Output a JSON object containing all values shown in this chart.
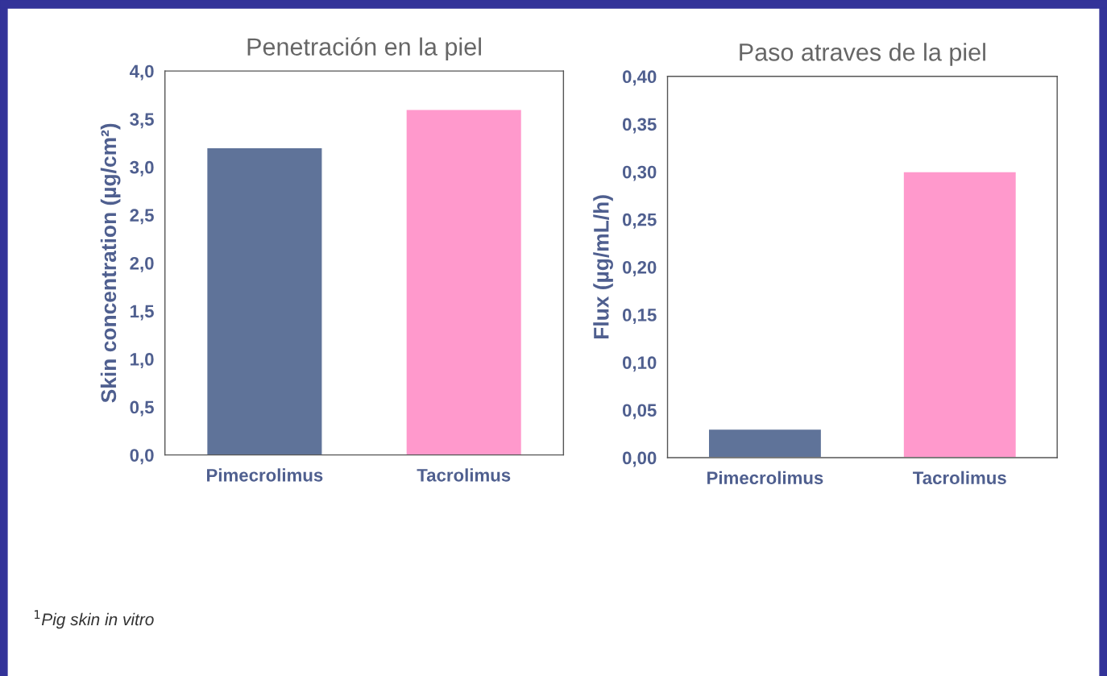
{
  "chart_data": [
    {
      "type": "bar",
      "title": "Penetración en la piel",
      "ylabel": "Skin concentration (µg/cm²)",
      "categories": [
        "Pimecrolimus",
        "Tacrolimus"
      ],
      "values": [
        3.2,
        3.6
      ],
      "colors": [
        "#5f7399",
        "#ff99cc"
      ],
      "ylim": [
        0,
        4
      ],
      "yticks": [
        {
          "value": 0,
          "label": "0,0"
        },
        {
          "value": 0.5,
          "label": "0,5"
        },
        {
          "value": 1,
          "label": "1,0"
        },
        {
          "value": 1.5,
          "label": "1,5"
        },
        {
          "value": 2,
          "label": "2,0"
        },
        {
          "value": 2.5,
          "label": "2,5"
        },
        {
          "value": 3,
          "label": "3,0"
        },
        {
          "value": 3.5,
          "label": "3,5"
        },
        {
          "value": 4,
          "label": "4,0"
        }
      ],
      "annotations": [
        "$^{1}$Pig skin in vitro"
      ]
    },
    {
      "type": "bar",
      "title": "Paso atraves de la piel",
      "ylabel": "Flux (µg/mL/h)",
      "categories": [
        "Pimecrolimus",
        "Tacrolimus"
      ],
      "values": [
        0.03,
        0.3
      ],
      "colors": [
        "#5f7399",
        "#ff99cc"
      ],
      "ylim": [
        0,
        0.4
      ],
      "yticks": [
        {
          "value": 0,
          "label": "0,00"
        },
        {
          "value": 0.05,
          "label": "0,05"
        },
        {
          "value": 0.1,
          "label": "0,10"
        },
        {
          "value": 0.15,
          "label": "0,15"
        },
        {
          "value": 0.2,
          "label": "0,20"
        },
        {
          "value": 0.25,
          "label": "0,25"
        },
        {
          "value": 0.3,
          "label": "0,30"
        },
        {
          "value": 0.35,
          "label": "0,35"
        },
        {
          "value": 0.4,
          "label": "0,40"
        }
      ]
    }
  ]
}
